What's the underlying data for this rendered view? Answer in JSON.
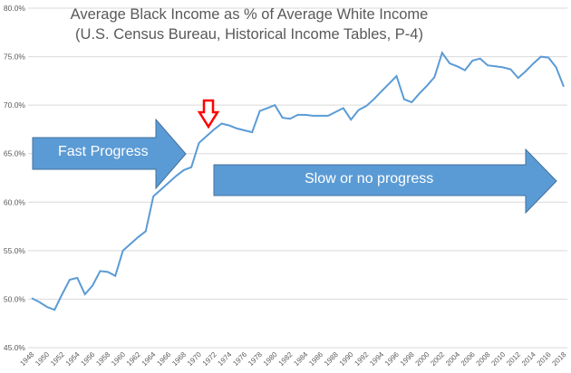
{
  "chart_data": {
    "type": "line",
    "title": "Average Black Income as % of Average White Income",
    "subtitle": "(U.S. Census Bureau, Historical Income Tables, P-4)",
    "xlabel": "",
    "ylabel": "",
    "ylim": [
      45,
      80
    ],
    "yticks": [
      "45.0%",
      "50.0%",
      "55.0%",
      "60.0%",
      "65.0%",
      "70.0%",
      "75.0%",
      "80.0%"
    ],
    "xticks": [
      "1948",
      "1950",
      "1952",
      "1954",
      "1956",
      "1958",
      "1960",
      "1962",
      "1964",
      "1966",
      "1968",
      "1970",
      "1972",
      "1974",
      "1976",
      "1978",
      "1980",
      "1982",
      "1984",
      "1986",
      "1988",
      "1990",
      "1992",
      "1994",
      "1996",
      "1998",
      "2000",
      "2002",
      "2004",
      "2006",
      "2008",
      "2010",
      "2012",
      "2014",
      "2016",
      "2018"
    ],
    "grid": true,
    "color": "#5B9BD5",
    "x": [
      1948,
      1949,
      1950,
      1951,
      1952,
      1953,
      1954,
      1955,
      1956,
      1957,
      1958,
      1959,
      1960,
      1961,
      1962,
      1963,
      1964,
      1965,
      1966,
      1967,
      1968,
      1969,
      1970,
      1971,
      1972,
      1973,
      1974,
      1975,
      1976,
      1977,
      1978,
      1979,
      1980,
      1981,
      1982,
      1983,
      1984,
      1985,
      1986,
      1987,
      1988,
      1989,
      1990,
      1991,
      1992,
      1993,
      1994,
      1995,
      1996,
      1997,
      1998,
      1999,
      2000,
      2001,
      2002,
      2003,
      2004,
      2005,
      2006,
      2007,
      2008,
      2009,
      2010,
      2011,
      2012,
      2013,
      2014,
      2015,
      2016,
      2017,
      2018
    ],
    "values": [
      50.1,
      49.7,
      49.2,
      48.9,
      50.5,
      52.0,
      52.2,
      50.5,
      51.4,
      52.9,
      52.8,
      52.4,
      55.0,
      55.7,
      56.4,
      57.0,
      60.6,
      61.3,
      62.0,
      62.7,
      63.3,
      63.6,
      66.1,
      66.8,
      67.5,
      68.1,
      67.9,
      67.6,
      67.4,
      67.2,
      69.4,
      69.7,
      70.0,
      68.7,
      68.6,
      69.0,
      69.0,
      68.9,
      68.9,
      68.9,
      69.3,
      69.7,
      68.5,
      69.5,
      69.9,
      70.6,
      71.4,
      72.2,
      73.0,
      70.6,
      70.3,
      71.2,
      72.0,
      72.9,
      75.4,
      74.3,
      74.0,
      73.6,
      74.6,
      74.8,
      74.1,
      74.0,
      73.9,
      73.7,
      72.8,
      73.5,
      74.3,
      75.0,
      74.9,
      73.9,
      71.9
    ],
    "annotations": {
      "fast": "Fast Progress",
      "slow": "Slow or no progress",
      "arrow_fill": "#5B9BD5",
      "marker_color": "#FF0000"
    }
  }
}
